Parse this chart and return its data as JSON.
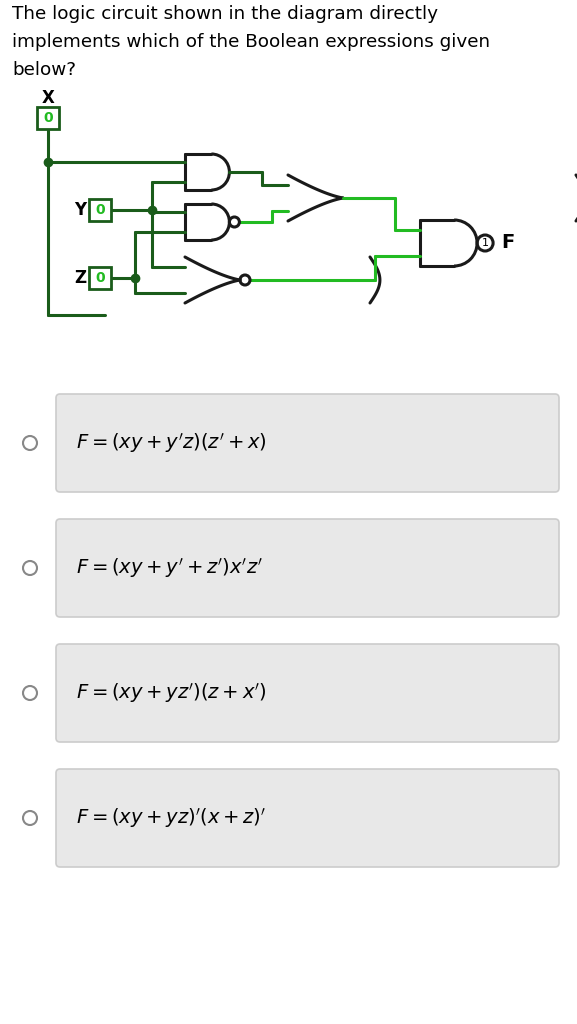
{
  "bg_color": "#ffffff",
  "dark_green": "#1a5c1a",
  "bright_green": "#22bb22",
  "gate_color": "#1a1a1a",
  "option_bg": "#e8e8e8",
  "option_border": "#cccccc",
  "question_lines": [
    "The logic circuit shown in the diagram directly",
    "implements which of the Boolean expressions given",
    "below?"
  ],
  "options_text": [
    "$F = \\left(xy + y'z\\right) \\left(z' + x\\right)$",
    "$F = \\left(xy + y' + z'\\right) x' z'$",
    "$F = \\left(xy + yz'\\right)\\left(z + x'\\right)$",
    "$F = \\left(xy + yz\\right)' \\left(x + z\\right)'$"
  ]
}
